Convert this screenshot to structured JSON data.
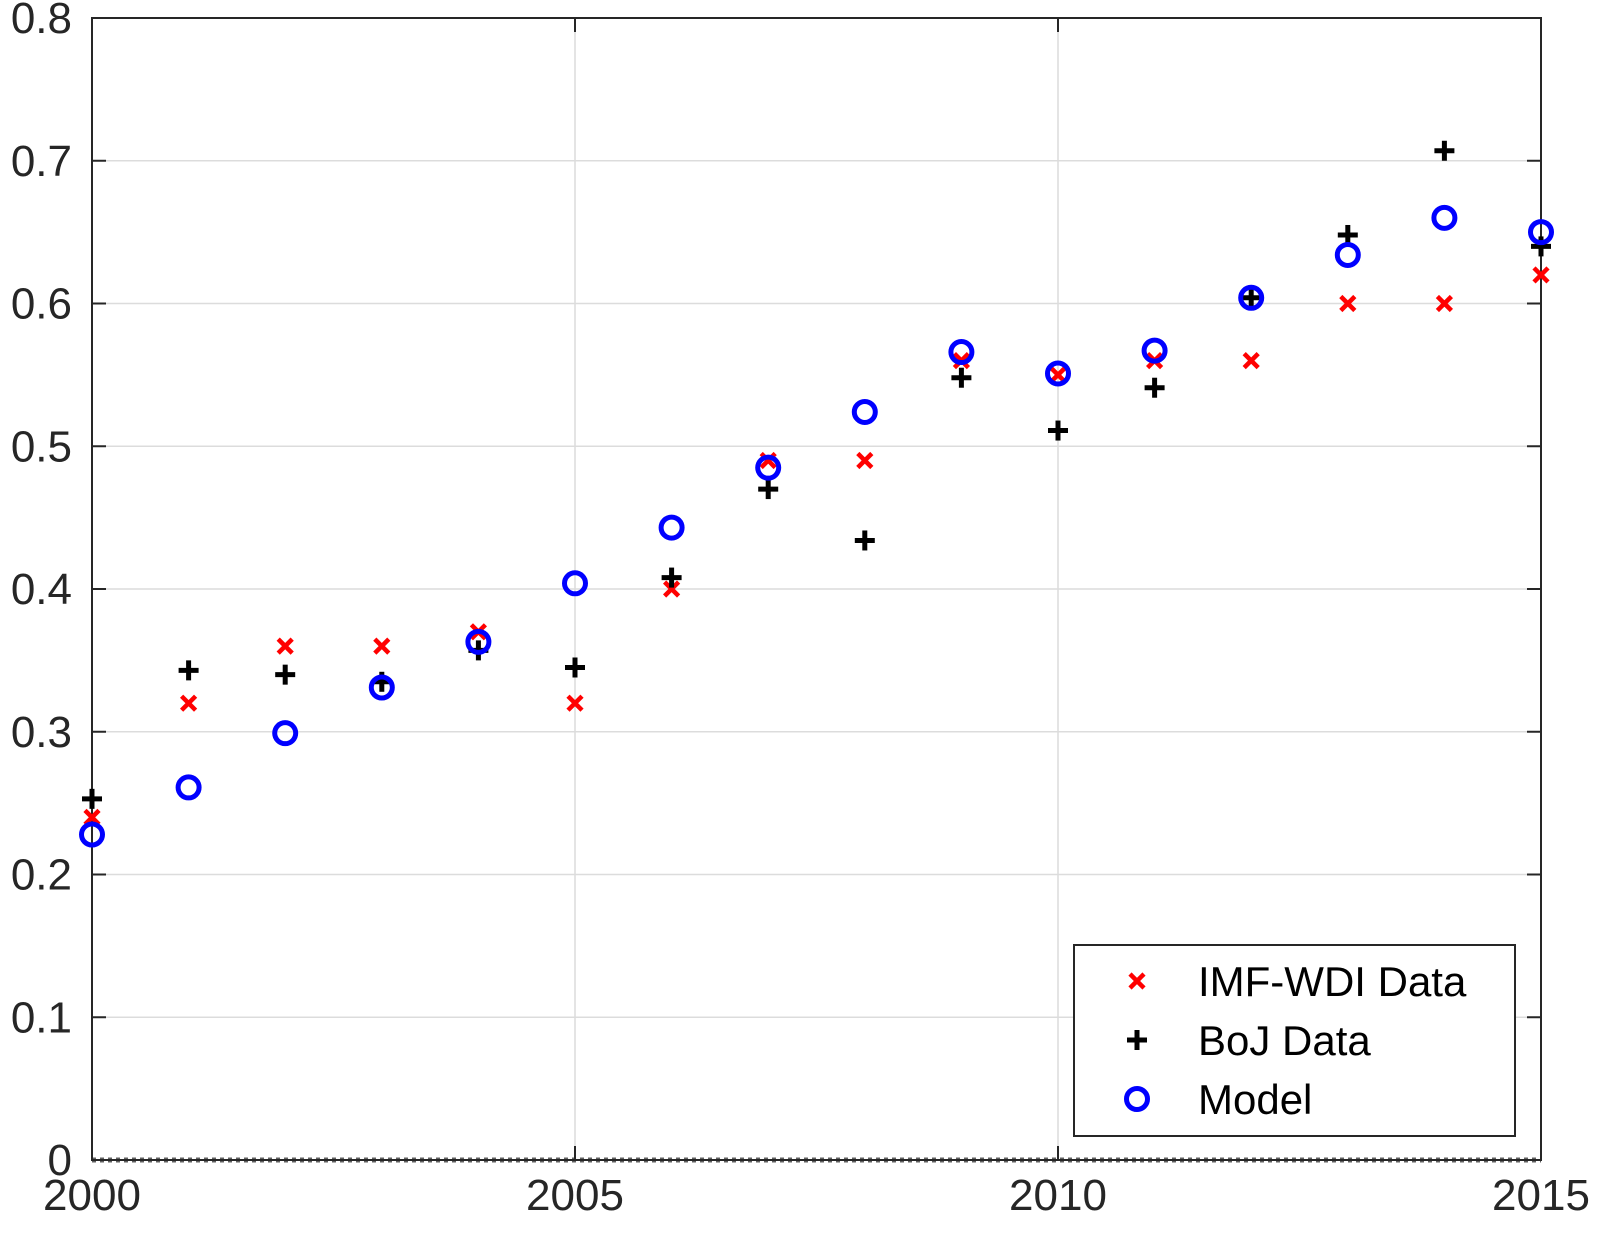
{
  "chart_data": {
    "type": "scatter",
    "title": "",
    "xlabel": "",
    "ylabel": "",
    "xlim": [
      2000,
      2015
    ],
    "ylim": [
      0,
      0.8
    ],
    "xticks": [
      2000,
      2005,
      2010,
      2015
    ],
    "xtick_labels": [
      "2000",
      "2005",
      "2010",
      "2015"
    ],
    "yticks": [
      0,
      0.1,
      0.2,
      0.3,
      0.4,
      0.5,
      0.6,
      0.7,
      0.8
    ],
    "ytick_labels": [
      "0",
      "0.1",
      "0.2",
      "0.3",
      "0.4",
      "0.5",
      "0.6",
      "0.7",
      "0.8"
    ],
    "grid": true,
    "legend_position": "bottom-right",
    "baseline": {
      "y": 0,
      "style": "dotted"
    },
    "series": [
      {
        "name": "IMF-WDI Data",
        "marker": "x",
        "color": "#ff0000",
        "x": [
          2000,
          2001,
          2002,
          2003,
          2004,
          2005,
          2006,
          2007,
          2008,
          2009,
          2010,
          2011,
          2012,
          2013,
          2014,
          2015
        ],
        "y": [
          0.24,
          0.32,
          0.36,
          0.36,
          0.37,
          0.32,
          0.4,
          0.49,
          0.49,
          0.56,
          0.55,
          0.56,
          0.56,
          0.6,
          0.6,
          0.62
        ]
      },
      {
        "name": "BoJ Data",
        "marker": "+",
        "color": "#000000",
        "x": [
          2000,
          2001,
          2002,
          2003,
          2004,
          2005,
          2006,
          2007,
          2008,
          2009,
          2010,
          2011,
          2012,
          2013,
          2014,
          2015
        ],
        "y": [
          0.253,
          0.343,
          0.34,
          0.335,
          0.357,
          0.345,
          0.408,
          0.47,
          0.434,
          0.548,
          0.511,
          0.541,
          0.604,
          0.648,
          0.707,
          0.64
        ]
      },
      {
        "name": "Model",
        "marker": "o",
        "color": "#0000ff",
        "x": [
          2000,
          2001,
          2002,
          2003,
          2004,
          2005,
          2006,
          2007,
          2008,
          2009,
          2010,
          2011,
          2012,
          2013,
          2014,
          2015
        ],
        "y": [
          0.228,
          0.261,
          0.299,
          0.331,
          0.363,
          0.404,
          0.443,
          0.485,
          0.524,
          0.566,
          0.551,
          0.567,
          0.604,
          0.634,
          0.66,
          0.65
        ]
      }
    ]
  }
}
